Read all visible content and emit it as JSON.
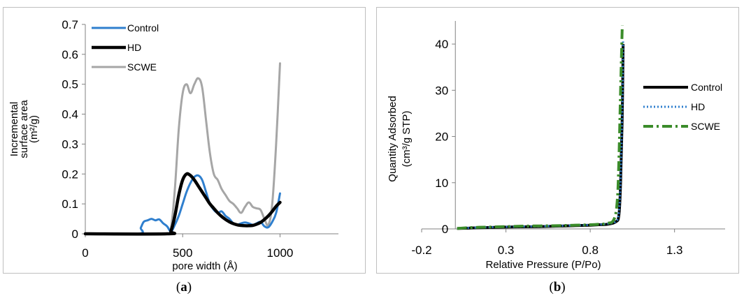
{
  "chart_data": [
    {
      "type": "line",
      "caption": "(a)",
      "caption_letter": "a",
      "xlabel": "pore width (Å)",
      "ylabel_lines": [
        "Incremental",
        "surface area",
        "(m²/g)"
      ],
      "xlim": [
        0,
        1300
      ],
      "ylim": [
        0,
        0.7
      ],
      "xticks": [
        "0",
        "500",
        "1000"
      ],
      "xtick_values": [
        0,
        500,
        1000
      ],
      "yticks": [
        "0",
        "0.1",
        "0.2",
        "0.3",
        "0.4",
        "0.5",
        "0.6",
        "0.7"
      ],
      "ytick_values": [
        0,
        0.1,
        0.2,
        0.3,
        0.4,
        0.5,
        0.6,
        0.7
      ],
      "grid": false,
      "legend_position": "top-left",
      "series": [
        {
          "name": "Control",
          "color": "#2f7fce",
          "x": [
            0,
            270,
            285,
            300,
            320,
            340,
            360,
            380,
            400,
            420,
            440,
            460,
            480,
            500,
            520,
            540,
            560,
            580,
            600,
            620,
            640,
            660,
            680,
            700,
            720,
            740,
            760,
            780,
            800,
            820,
            840,
            860,
            880,
            900,
            920,
            940,
            960,
            980,
            1000
          ],
          "values": [
            0,
            0,
            0.02,
            0.04,
            0.045,
            0.05,
            0.045,
            0.048,
            0.035,
            0.025,
            0.008,
            0.03,
            0.06,
            0.1,
            0.14,
            0.17,
            0.19,
            0.195,
            0.18,
            0.14,
            0.1,
            0.08,
            0.07,
            0.075,
            0.06,
            0.05,
            0.035,
            0.03,
            0.035,
            0.038,
            0.035,
            0.03,
            0.035,
            0.04,
            0.025,
            0.022,
            0.04,
            0.07,
            0.135
          ]
        },
        {
          "name": "HD",
          "color": "#000000",
          "x": [
            0,
            420,
            440,
            460,
            480,
            500,
            520,
            540,
            560,
            580,
            600,
            620,
            640,
            660,
            680,
            700,
            720,
            740,
            760,
            780,
            800,
            820,
            840,
            860,
            880,
            900,
            920,
            940,
            960,
            980,
            1000
          ],
          "values": [
            0,
            0,
            0.01,
            0.06,
            0.13,
            0.18,
            0.2,
            0.195,
            0.18,
            0.16,
            0.14,
            0.12,
            0.1,
            0.085,
            0.07,
            0.058,
            0.048,
            0.04,
            0.034,
            0.03,
            0.028,
            0.027,
            0.027,
            0.028,
            0.032,
            0.038,
            0.048,
            0.06,
            0.075,
            0.092,
            0.105
          ]
        },
        {
          "name": "SCWE",
          "color": "#a6a6a6",
          "x": [
            0,
            420,
            440,
            460,
            480,
            500,
            520,
            540,
            560,
            580,
            600,
            620,
            640,
            660,
            680,
            700,
            720,
            740,
            760,
            780,
            800,
            820,
            840,
            860,
            880,
            900,
            920,
            940,
            960,
            980,
            1000
          ],
          "values": [
            0,
            0,
            0.02,
            0.15,
            0.35,
            0.47,
            0.5,
            0.47,
            0.5,
            0.52,
            0.49,
            0.38,
            0.27,
            0.2,
            0.18,
            0.15,
            0.13,
            0.11,
            0.1,
            0.085,
            0.07,
            0.09,
            0.105,
            0.09,
            0.085,
            0.08,
            0.05,
            0.03,
            0.1,
            0.3,
            0.57
          ]
        }
      ]
    },
    {
      "type": "line",
      "caption": "(b)",
      "caption_letter": "b",
      "xlabel": "Relative Pressure (P/Po)",
      "ylabel_lines": [
        "Quantity Adsorbed",
        "(cm³/g STP)"
      ],
      "xlim": [
        -0.2,
        1.6
      ],
      "ylim": [
        0,
        45
      ],
      "xticks": [
        "-0.2",
        "0.3",
        "0.8",
        "1.3"
      ],
      "xtick_values": [
        -0.2,
        0.3,
        0.8,
        1.3
      ],
      "yticks": [
        "0",
        "10",
        "20",
        "30",
        "40"
      ],
      "ytick_values": [
        0,
        10,
        20,
        30,
        40
      ],
      "grid": false,
      "legend_position": "right",
      "series": [
        {
          "name": "Control",
          "color": "#000000",
          "dash": "solid",
          "x": [
            0.01,
            0.1,
            0.2,
            0.3,
            0.4,
            0.5,
            0.6,
            0.7,
            0.8,
            0.85,
            0.9,
            0.95,
            0.97,
            0.98,
            0.99,
            0.995
          ],
          "values": [
            0.1,
            0.2,
            0.3,
            0.4,
            0.45,
            0.5,
            0.6,
            0.7,
            0.8,
            0.9,
            1.0,
            1.5,
            3,
            10,
            25,
            40
          ]
        },
        {
          "name": "HD",
          "color": "#2f7fce",
          "dash": "dotted",
          "x": [
            0.01,
            0.1,
            0.2,
            0.3,
            0.4,
            0.5,
            0.6,
            0.7,
            0.8,
            0.85,
            0.9,
            0.95,
            0.97,
            0.98,
            0.99,
            0.995
          ],
          "values": [
            0.1,
            0.25,
            0.35,
            0.45,
            0.5,
            0.55,
            0.65,
            0.75,
            0.85,
            0.95,
            1.1,
            1.6,
            3.5,
            11,
            26,
            41
          ]
        },
        {
          "name": "SCWE",
          "color": "#3b8c2a",
          "dash": "dashdot",
          "x": [
            0.01,
            0.1,
            0.2,
            0.3,
            0.4,
            0.5,
            0.6,
            0.7,
            0.8,
            0.85,
            0.9,
            0.94,
            0.96,
            0.97,
            0.98,
            0.99
          ],
          "values": [
            0.1,
            0.3,
            0.4,
            0.5,
            0.6,
            0.65,
            0.7,
            0.8,
            0.9,
            1.0,
            1.2,
            2,
            6,
            15,
            30,
            44
          ]
        }
      ]
    }
  ]
}
